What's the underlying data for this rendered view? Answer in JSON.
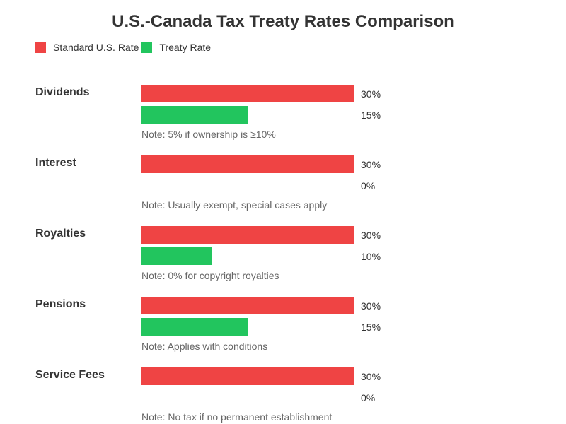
{
  "chart_data": {
    "type": "bar",
    "orientation": "horizontal",
    "title": "U.S.-Canada Tax Treaty Rates Comparison",
    "unit": "%",
    "xlim": [
      0,
      30
    ],
    "grid": false,
    "legend_placement": "top-left",
    "categories": [
      "Dividends",
      "Interest",
      "Royalties",
      "Pensions",
      "Service Fees"
    ],
    "series": [
      {
        "name": "Standard U.S. Rate",
        "color": "#ef4444",
        "values": [
          30,
          30,
          30,
          30,
          30
        ]
      },
      {
        "name": "Treaty Rate",
        "color": "#22c55e",
        "values": [
          15,
          0,
          10,
          15,
          0
        ]
      }
    ],
    "notes": [
      "Note: 5% if ownership is ≥10%",
      "Note: Usually exempt, special cases apply",
      "Note: 0% for copyright royalties",
      "Note: Applies with conditions",
      "Note: No tax if no permanent establishment"
    ]
  }
}
